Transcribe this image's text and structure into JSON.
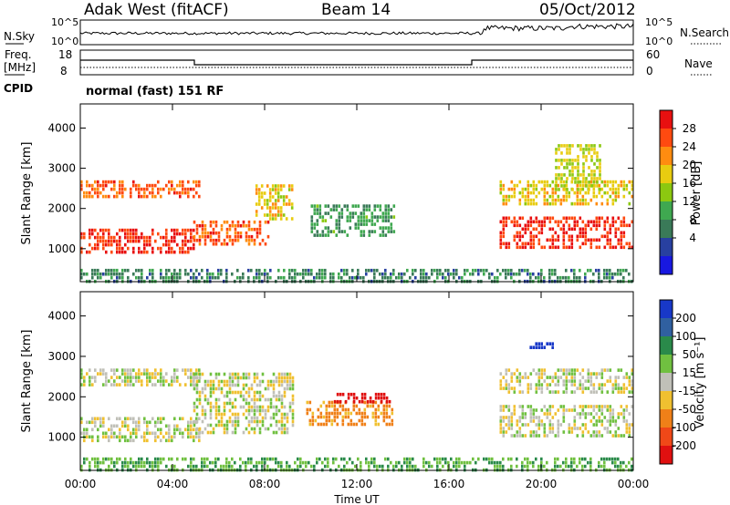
{
  "header": {
    "station": "Adak West (fitACF)",
    "beam": "Beam 14",
    "date": "05/Oct/2012"
  },
  "noise_panel": {
    "left_label": "N.Sky",
    "right_label": "N.Search",
    "left_ticks": [
      "10^5",
      "10^0"
    ],
    "right_ticks": [
      "10^5",
      "10^0"
    ]
  },
  "freq_panel": {
    "left_label_1": "Freq.",
    "left_label_2": "[MHz]",
    "right_label": "Nave",
    "left_ticks": [
      "18",
      "8"
    ],
    "right_ticks": [
      "60",
      "0"
    ]
  },
  "cpid_panel": {
    "label": "CPID",
    "text": "normal (fast) 151 RF"
  },
  "chart_data": [
    {
      "type": "heatmap",
      "panel": "power",
      "ylabel": "Slant Range [km]",
      "yticks": [
        "1000",
        "2000",
        "3000",
        "4000"
      ],
      "ylim": [
        180,
        4600
      ],
      "xticks": [
        "00:00",
        "04:00",
        "08:00",
        "12:00",
        "16:00",
        "20:00",
        "00:00"
      ],
      "xlim_hours": [
        0,
        24
      ],
      "colorbar": {
        "label": "Power [dB]",
        "ticks": [
          "28",
          "24",
          "20",
          "16",
          "12",
          "8",
          "4"
        ],
        "colors": [
          "#e81010",
          "#ff4a10",
          "#ff8c10",
          "#e8cc10",
          "#8cc810",
          "#3fa850",
          "#3a7a58",
          "#2840a0",
          "#1818e0"
        ]
      },
      "regions": [
        {
          "t0": 0.0,
          "t1": 4.9,
          "r0": 900,
          "r1": 1500,
          "level": 28
        },
        {
          "t0": 0.0,
          "t1": 5.2,
          "r0": 2300,
          "r1": 2700,
          "level": 26
        },
        {
          "t0": 4.9,
          "t1": 8.2,
          "r0": 1100,
          "r1": 1700,
          "level": 26
        },
        {
          "t0": 7.6,
          "t1": 9.2,
          "r0": 1700,
          "r1": 2600,
          "level": 20
        },
        {
          "t0": 10.0,
          "t1": 13.6,
          "r0": 1300,
          "r1": 2100,
          "level": 12
        },
        {
          "t0": 18.2,
          "t1": 24.0,
          "r0": 1000,
          "r1": 1800,
          "level": 28
        },
        {
          "t0": 18.2,
          "t1": 24.0,
          "r0": 2100,
          "r1": 2700,
          "level": 20
        },
        {
          "t0": 20.6,
          "t1": 22.6,
          "r0": 2500,
          "r1": 3600,
          "level": 18
        },
        {
          "t0": 0.0,
          "t1": 24.0,
          "r0": 180,
          "r1": 500,
          "level": 10
        }
      ]
    },
    {
      "type": "heatmap",
      "panel": "velocity",
      "ylabel": "Slant Range [km]",
      "yticks": [
        "1000",
        "2000",
        "3000",
        "4000"
      ],
      "ylim": [
        180,
        4600
      ],
      "xticks": [
        "00:00",
        "04:00",
        "08:00",
        "12:00",
        "16:00",
        "20:00",
        "00:00"
      ],
      "xlim_hours": [
        0,
        24
      ],
      "xlabel": "Time UT",
      "colorbar": {
        "label": "Velocity [m s⁻¹]",
        "ticks": [
          "200",
          "100",
          "50",
          "15",
          "-15",
          "-50",
          "-100",
          "-200"
        ],
        "colors": [
          "#1838c8",
          "#3060a0",
          "#2a8a4a",
          "#70c040",
          "#c0c0b8",
          "#f0c030",
          "#f08018",
          "#f04818",
          "#e01010"
        ]
      },
      "regions": [
        {
          "t0": 0.0,
          "t1": 5.2,
          "r0": 950,
          "r1": 1500,
          "level": 0
        },
        {
          "t0": 0.0,
          "t1": 5.2,
          "r0": 2300,
          "r1": 2700,
          "level": 0
        },
        {
          "t0": 4.9,
          "t1": 9.2,
          "r0": 1100,
          "r1": 2600,
          "level": 0
        },
        {
          "t0": 9.8,
          "t1": 13.6,
          "r0": 1300,
          "r1": 1900,
          "level": -40
        },
        {
          "t0": 11.0,
          "t1": 13.4,
          "r0": 1900,
          "r1": 2100,
          "level": -180
        },
        {
          "t0": 18.2,
          "t1": 24.0,
          "r0": 1000,
          "r1": 1800,
          "level": 0
        },
        {
          "t0": 18.2,
          "t1": 24.0,
          "r0": 2100,
          "r1": 2700,
          "level": 0
        },
        {
          "t0": 19.5,
          "t1": 20.6,
          "r0": 3200,
          "r1": 3350,
          "level": 190
        },
        {
          "t0": 0.0,
          "t1": 24.0,
          "r0": 180,
          "r1": 500,
          "level": 30
        }
      ]
    }
  ]
}
